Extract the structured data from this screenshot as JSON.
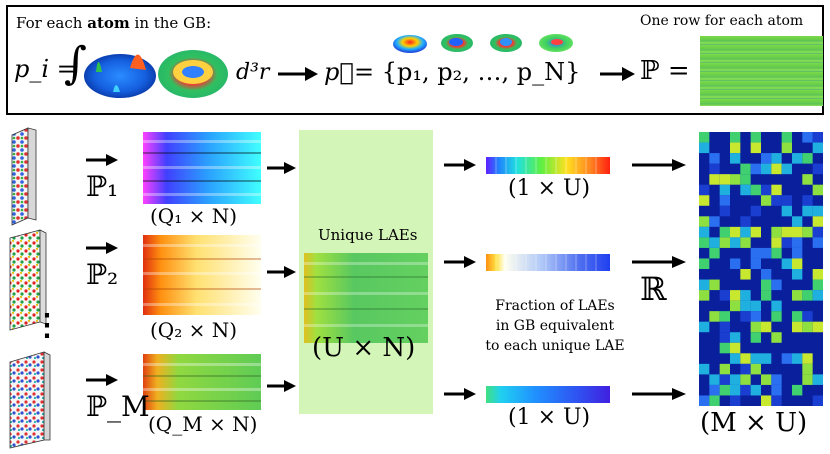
{
  "header": {
    "intro_prefix": "For each ",
    "intro_bold": "atom",
    "intro_suffix": " in the GB:",
    "formula_lhs": "p_i =",
    "integral_sign": "∫",
    "d3r": "d³r",
    "p_vec": "p⃗",
    "set_expression": "= {p₁, p₂, …, p_N}",
    "P_equals": "ℙ =",
    "row_caption": "One row for each atom"
  },
  "rows": [
    {
      "P_label": "ℙ₁",
      "dim_label": "(Q₁ × N)",
      "vector_dim": "(1 × U)"
    },
    {
      "P_label": "ℙ₂",
      "dim_label": "(Q₂ × N)",
      "vector_dim": ""
    },
    {
      "P_label": "ℙ_M",
      "dim_label": "(Q_M × N)",
      "vector_dim": "(1 × U)"
    }
  ],
  "vdots": "⋮",
  "unique": {
    "title": "Unique LAEs",
    "dim": "(U × N)"
  },
  "fraction_caption": [
    "Fraction of LAEs",
    "in GB equivalent",
    "to each unique LAE"
  ],
  "R_label": "ℝ",
  "R_dim": "(M × U)",
  "colors": {
    "green_box": "#d4f5b8",
    "heatmap_bg": "#0a1f9c",
    "arrow": "#000000"
  }
}
